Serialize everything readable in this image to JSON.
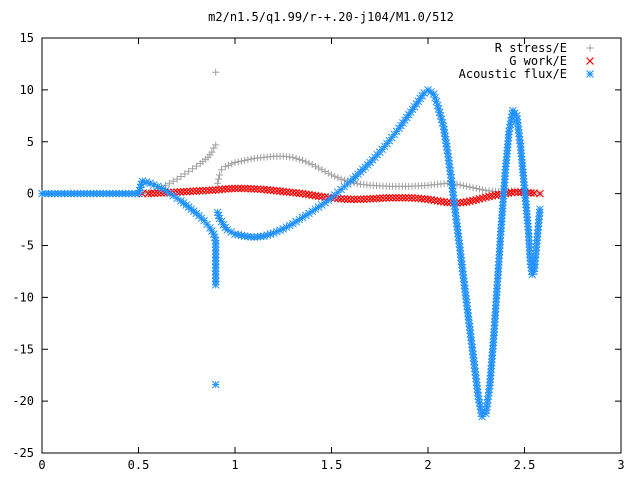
{
  "chart_data": {
    "type": "scatter",
    "title": "m2/n1.5/q1.99/r-+.20-j104/M1.0/512",
    "xlabel": "",
    "ylabel": "",
    "xlim": [
      0,
      3
    ],
    "ylim": [
      -25,
      15
    ],
    "x_ticks": [
      "0",
      "0.5",
      "1",
      "1.5",
      "2",
      "2.5",
      "3"
    ],
    "y_ticks": [
      "15",
      "10",
      "5",
      "0",
      "-5",
      "-10",
      "-15",
      "-20",
      "-25"
    ],
    "grid": false,
    "legend_position": "top-right",
    "series": [
      {
        "name": "R stress/E",
        "marker": "plus",
        "color": "#a0a0a0",
        "points": [
          [
            0.52,
            0.0
          ],
          [
            0.58,
            0.3
          ],
          [
            0.62,
            0.6
          ],
          [
            0.66,
            1.0
          ],
          [
            0.7,
            1.4
          ],
          [
            0.74,
            1.9
          ],
          [
            0.78,
            2.4
          ],
          [
            0.82,
            2.9
          ],
          [
            0.86,
            3.5
          ],
          [
            0.88,
            4.0
          ],
          [
            0.89,
            4.4
          ],
          [
            0.9,
            4.7
          ],
          [
            0.9,
            11.7
          ],
          [
            0.91,
            1.0
          ],
          [
            0.92,
            1.8
          ],
          [
            0.93,
            2.3
          ],
          [
            0.95,
            2.6
          ],
          [
            1.0,
            3.0
          ],
          [
            1.05,
            3.2
          ],
          [
            1.1,
            3.4
          ],
          [
            1.15,
            3.5
          ],
          [
            1.2,
            3.6
          ],
          [
            1.25,
            3.6
          ],
          [
            1.3,
            3.5
          ],
          [
            1.35,
            3.2
          ],
          [
            1.4,
            2.8
          ],
          [
            1.45,
            2.3
          ],
          [
            1.5,
            1.8
          ],
          [
            1.55,
            1.4
          ],
          [
            1.6,
            1.1
          ],
          [
            1.65,
            0.9
          ],
          [
            1.7,
            0.8
          ],
          [
            1.8,
            0.7
          ],
          [
            1.9,
            0.7
          ],
          [
            2.0,
            0.8
          ],
          [
            2.05,
            0.9
          ],
          [
            2.1,
            1.0
          ],
          [
            2.15,
            0.9
          ],
          [
            2.2,
            0.7
          ],
          [
            2.25,
            0.5
          ],
          [
            2.3,
            0.3
          ],
          [
            2.35,
            0.2
          ],
          [
            2.4,
            0.2
          ],
          [
            2.45,
            0.3
          ],
          [
            2.5,
            0.2
          ],
          [
            2.55,
            0.1
          ],
          [
            2.58,
            0.0
          ]
        ]
      },
      {
        "name": "G work/E",
        "marker": "cross",
        "color": "#ff0000",
        "points": [
          [
            0.52,
            0.0
          ],
          [
            0.55,
            0.0
          ],
          [
            0.6,
            0.05
          ],
          [
            0.65,
            0.1
          ],
          [
            0.7,
            0.15
          ],
          [
            0.75,
            0.2
          ],
          [
            0.8,
            0.25
          ],
          [
            0.85,
            0.3
          ],
          [
            0.9,
            0.35
          ],
          [
            0.95,
            0.45
          ],
          [
            1.0,
            0.5
          ],
          [
            1.05,
            0.5
          ],
          [
            1.1,
            0.45
          ],
          [
            1.15,
            0.4
          ],
          [
            1.2,
            0.3
          ],
          [
            1.25,
            0.2
          ],
          [
            1.3,
            0.1
          ],
          [
            1.35,
            0.0
          ],
          [
            1.4,
            -0.15
          ],
          [
            1.45,
            -0.3
          ],
          [
            1.5,
            -0.4
          ],
          [
            1.55,
            -0.5
          ],
          [
            1.6,
            -0.55
          ],
          [
            1.65,
            -0.55
          ],
          [
            1.7,
            -0.5
          ],
          [
            1.75,
            -0.45
          ],
          [
            1.8,
            -0.4
          ],
          [
            1.85,
            -0.4
          ],
          [
            1.9,
            -0.4
          ],
          [
            1.95,
            -0.45
          ],
          [
            2.0,
            -0.55
          ],
          [
            2.05,
            -0.7
          ],
          [
            2.1,
            -0.85
          ],
          [
            2.15,
            -0.9
          ],
          [
            2.2,
            -0.8
          ],
          [
            2.25,
            -0.6
          ],
          [
            2.3,
            -0.35
          ],
          [
            2.35,
            -0.15
          ],
          [
            2.4,
            0.0
          ],
          [
            2.45,
            0.15
          ],
          [
            2.5,
            0.1
          ],
          [
            2.55,
            0.05
          ],
          [
            2.58,
            0.0
          ]
        ]
      },
      {
        "name": "Acoustic flux/E",
        "marker": "star",
        "color": "#1e90ff",
        "points": [
          [
            0.0,
            0.0
          ],
          [
            0.05,
            0.0
          ],
          [
            0.1,
            0.0
          ],
          [
            0.15,
            0.0
          ],
          [
            0.2,
            0.0
          ],
          [
            0.25,
            0.0
          ],
          [
            0.3,
            0.0
          ],
          [
            0.35,
            0.0
          ],
          [
            0.4,
            0.0
          ],
          [
            0.45,
            0.0
          ],
          [
            0.5,
            0.0
          ],
          [
            0.52,
            1.2
          ],
          [
            0.56,
            1.0
          ],
          [
            0.6,
            0.7
          ],
          [
            0.64,
            0.3
          ],
          [
            0.68,
            -0.2
          ],
          [
            0.72,
            -0.7
          ],
          [
            0.76,
            -1.3
          ],
          [
            0.8,
            -1.9
          ],
          [
            0.84,
            -2.6
          ],
          [
            0.87,
            -3.3
          ],
          [
            0.89,
            -3.9
          ],
          [
            0.9,
            -4.5
          ],
          [
            0.9,
            -8.8
          ],
          [
            0.9,
            -18.4
          ],
          [
            0.91,
            -1.8
          ],
          [
            0.92,
            -2.4
          ],
          [
            0.94,
            -3.0
          ],
          [
            0.96,
            -3.5
          ],
          [
            1.0,
            -3.9
          ],
          [
            1.05,
            -4.1
          ],
          [
            1.1,
            -4.2
          ],
          [
            1.15,
            -4.1
          ],
          [
            1.2,
            -3.8
          ],
          [
            1.25,
            -3.4
          ],
          [
            1.3,
            -2.9
          ],
          [
            1.35,
            -2.3
          ],
          [
            1.4,
            -1.7
          ],
          [
            1.45,
            -1.1
          ],
          [
            1.5,
            -0.4
          ],
          [
            1.55,
            0.4
          ],
          [
            1.6,
            1.2
          ],
          [
            1.65,
            2.1
          ],
          [
            1.7,
            3.0
          ],
          [
            1.75,
            4.0
          ],
          [
            1.8,
            5.1
          ],
          [
            1.85,
            6.3
          ],
          [
            1.9,
            7.6
          ],
          [
            1.95,
            8.9
          ],
          [
            1.98,
            9.7
          ],
          [
            2.0,
            10.0
          ],
          [
            2.03,
            9.6
          ],
          [
            2.05,
            8.5
          ],
          [
            2.08,
            6.5
          ],
          [
            2.1,
            4.2
          ],
          [
            2.12,
            1.5
          ],
          [
            2.14,
            -1.5
          ],
          [
            2.16,
            -4.5
          ],
          [
            2.18,
            -7.5
          ],
          [
            2.2,
            -10.5
          ],
          [
            2.22,
            -13.5
          ],
          [
            2.24,
            -16.5
          ],
          [
            2.26,
            -19.5
          ],
          [
            2.28,
            -21.5
          ],
          [
            2.3,
            -21.2
          ],
          [
            2.32,
            -18.5
          ],
          [
            2.34,
            -14.0
          ],
          [
            2.36,
            -8.5
          ],
          [
            2.38,
            -3.0
          ],
          [
            2.4,
            2.0
          ],
          [
            2.42,
            6.0
          ],
          [
            2.44,
            8.0
          ],
          [
            2.46,
            7.5
          ],
          [
            2.48,
            4.5
          ],
          [
            2.5,
            0.5
          ],
          [
            2.52,
            -3.5
          ],
          [
            2.53,
            -6.5
          ],
          [
            2.54,
            -7.8
          ],
          [
            2.55,
            -7.5
          ],
          [
            2.56,
            -5.5
          ],
          [
            2.57,
            -3.5
          ],
          [
            2.58,
            -1.5
          ]
        ]
      }
    ]
  }
}
